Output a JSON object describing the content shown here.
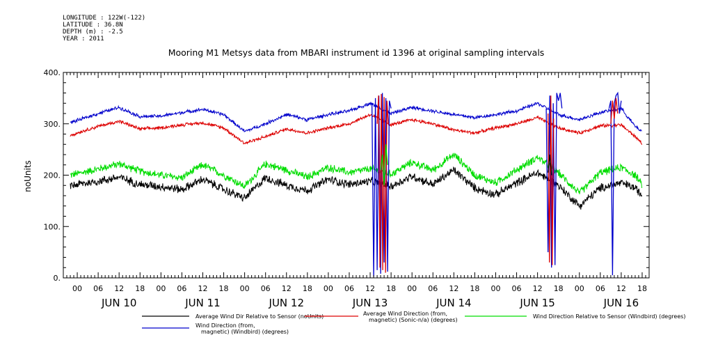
{
  "meta": {
    "longitude": "LONGITUDE : 122W(-122)",
    "latitude": "LATITUDE : 36.8N",
    "depth": "DEPTH (m) : -2.5",
    "year": "YEAR : 2011"
  },
  "chart_data": {
    "type": "line",
    "title": "Mooring M1 Metsys data from MBARI instrument id 1396 at original sampling intervals",
    "ylabel": "noUnits",
    "xlabel": "",
    "ylim": [
      0,
      400
    ],
    "yticks": [
      0,
      100,
      200,
      300,
      400
    ],
    "ytick_labels": [
      "0.",
      "100.",
      "200.",
      "300.",
      "400."
    ],
    "xlim_hours": [
      -4,
      164
    ],
    "x_unit": "hours since JUN 10 00:00, 2011",
    "hour_tick_labels": [
      "00",
      "06",
      "12",
      "18",
      "00",
      "06",
      "12",
      "18",
      "00",
      "06",
      "12",
      "18",
      "00",
      "06",
      "12",
      "18",
      "00",
      "06",
      "12",
      "18",
      "00",
      "06",
      "12",
      "18",
      "00",
      "06",
      "12",
      "18"
    ],
    "days": [
      "JUN 10",
      "JUN 11",
      "JUN 12",
      "JUN 13",
      "JUN 14",
      "JUN 15",
      "JUN 16"
    ],
    "grid": false,
    "legend_position": "bottom",
    "series": [
      {
        "name": "Average Wind Dir Relative to Sensor (noUnits)",
        "color": "#000000",
        "noise": 10,
        "x": [
          -2,
          6,
          12,
          18,
          24,
          30,
          36,
          42,
          48,
          54,
          60,
          66,
          72,
          78,
          84,
          90,
          96,
          102,
          108,
          114,
          120,
          126,
          132,
          138,
          144,
          150,
          156,
          160,
          162
        ],
        "values": [
          180,
          188,
          196,
          182,
          178,
          172,
          192,
          172,
          155,
          195,
          180,
          170,
          192,
          182,
          188,
          178,
          198,
          182,
          210,
          175,
          162,
          185,
          205,
          180,
          140,
          175,
          185,
          175,
          160
        ]
      },
      {
        "name": "Average Wind Direction (from, magnetic) (Sonic-n/a) (degrees)",
        "color": "#dd0000",
        "noise": 4,
        "x": [
          -2,
          6,
          12,
          18,
          24,
          30,
          36,
          42,
          48,
          54,
          60,
          66,
          72,
          78,
          84,
          90,
          96,
          102,
          108,
          114,
          120,
          126,
          132,
          138,
          144,
          150,
          156,
          160,
          162
        ],
        "values": [
          278,
          295,
          305,
          290,
          292,
          298,
          302,
          292,
          262,
          275,
          290,
          282,
          292,
          300,
          318,
          298,
          308,
          300,
          288,
          282,
          292,
          300,
          312,
          292,
          282,
          296,
          298,
          275,
          262
        ]
      },
      {
        "name": "Wind Direction Relative to Sensor (Windbird) (degrees)",
        "color": "#00dd00",
        "noise": 9,
        "x": [
          -2,
          6,
          12,
          18,
          24,
          30,
          36,
          42,
          48,
          54,
          60,
          66,
          72,
          78,
          84,
          90,
          96,
          102,
          108,
          114,
          120,
          126,
          132,
          138,
          144,
          150,
          156,
          160,
          162
        ],
        "values": [
          200,
          212,
          222,
          208,
          200,
          195,
          220,
          200,
          178,
          222,
          210,
          196,
          215,
          205,
          212,
          202,
          225,
          210,
          240,
          200,
          185,
          210,
          235,
          205,
          165,
          205,
          215,
          200,
          180
        ]
      },
      {
        "name": "Wind Direction (from, magnetic) (Windbird) (degrees)",
        "color": "#0000cc",
        "noise": 4,
        "x": [
          -2,
          6,
          12,
          18,
          24,
          30,
          36,
          42,
          48,
          54,
          60,
          66,
          72,
          78,
          84,
          90,
          96,
          102,
          108,
          114,
          120,
          126,
          132,
          138,
          144,
          150,
          156,
          160,
          162
        ],
        "values": [
          302,
          320,
          332,
          314,
          315,
          322,
          328,
          318,
          285,
          300,
          318,
          308,
          318,
          325,
          340,
          320,
          332,
          325,
          318,
          312,
          318,
          325,
          340,
          318,
          308,
          322,
          330,
          295,
          285
        ]
      }
    ],
    "spikes": [
      {
        "series": 3,
        "x": [
          84.5,
          85.0,
          85.5,
          86.0,
          86.5,
          87.0,
          87.5,
          88.0,
          88.5,
          89.0,
          89.5,
          90.0
        ],
        "values": [
          340,
          2,
          350,
          15,
          355,
          8,
          360,
          30,
          350,
          12,
          345,
          330
        ]
      },
      {
        "series": 1,
        "x": [
          86.0,
          86.4,
          86.8,
          87.2,
          87.6,
          88.0,
          88.4,
          88.8,
          89.2
        ],
        "values": [
          300,
          355,
          20,
          358,
          15,
          352,
          10,
          345,
          300
        ]
      },
      {
        "series": 2,
        "x": [
          87.0,
          87.5,
          88.0,
          88.5,
          89.0
        ],
        "values": [
          210,
          240,
          180,
          260,
          220
        ]
      },
      {
        "series": 3,
        "x": [
          134.5,
          135.0,
          135.5,
          136.0,
          136.5,
          137.0,
          137.5,
          138.0,
          138.5,
          139.0
        ],
        "values": [
          330,
          50,
          355,
          20,
          340,
          25,
          360,
          345,
          360,
          330
        ]
      },
      {
        "series": 1,
        "x": [
          135.0,
          135.4,
          135.8,
          136.2,
          136.6
        ],
        "values": [
          320,
          30,
          355,
          25,
          310
        ]
      },
      {
        "series": 0,
        "x": [
          135.0,
          135.5,
          136.0
        ],
        "values": [
          205,
          240,
          200
        ]
      },
      {
        "series": 3,
        "x": [
          152.5,
          153.0,
          153.5,
          154.0,
          154.5,
          155.0,
          155.5,
          156.0
        ],
        "values": [
          330,
          345,
          5,
          340,
          355,
          360,
          320,
          345
        ]
      },
      {
        "series": 1,
        "x": [
          153.0,
          153.5,
          154.0,
          154.5,
          155.0
        ],
        "values": [
          300,
          345,
          310,
          350,
          320
        ]
      }
    ]
  }
}
